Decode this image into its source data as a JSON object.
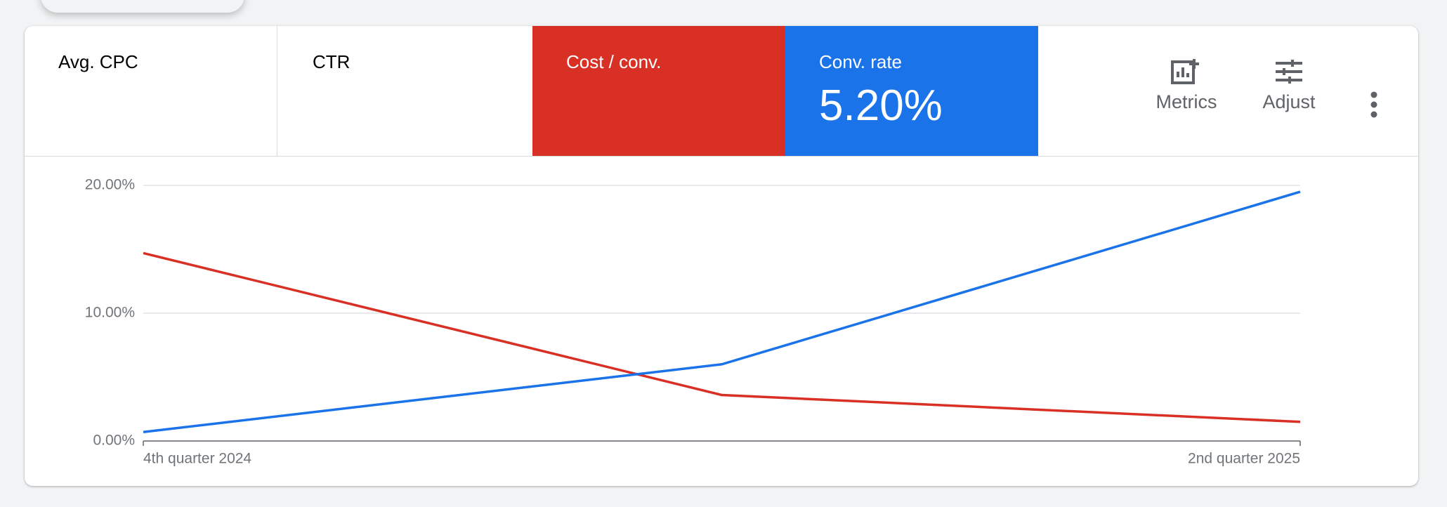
{
  "scorecards": [
    {
      "label": "Avg. CPC"
    },
    {
      "label": "CTR"
    }
  ],
  "toolbar": {
    "metrics": "Metrics",
    "adjust": "Adjust"
  },
  "chart_data": {
    "type": "line",
    "categories": [
      "4th quarter 2024",
      null,
      "2nd quarter 2025"
    ],
    "series": [
      {
        "name": "Cost / conv.",
        "color": "#d93025",
        "values": [
          14.7,
          3.6,
          1.5
        ]
      },
      {
        "name": "Conv. rate",
        "color": "#1a73e8",
        "values": [
          0.7,
          6.0,
          19.5
        ],
        "summary": "5.20%"
      }
    ],
    "ylim": [
      0,
      20
    ],
    "yticks": [
      {
        "value": 0,
        "label": "0.00%"
      },
      {
        "value": 10,
        "label": "10.00%"
      },
      {
        "value": 20,
        "label": "20.00%"
      }
    ],
    "grid": true
  }
}
